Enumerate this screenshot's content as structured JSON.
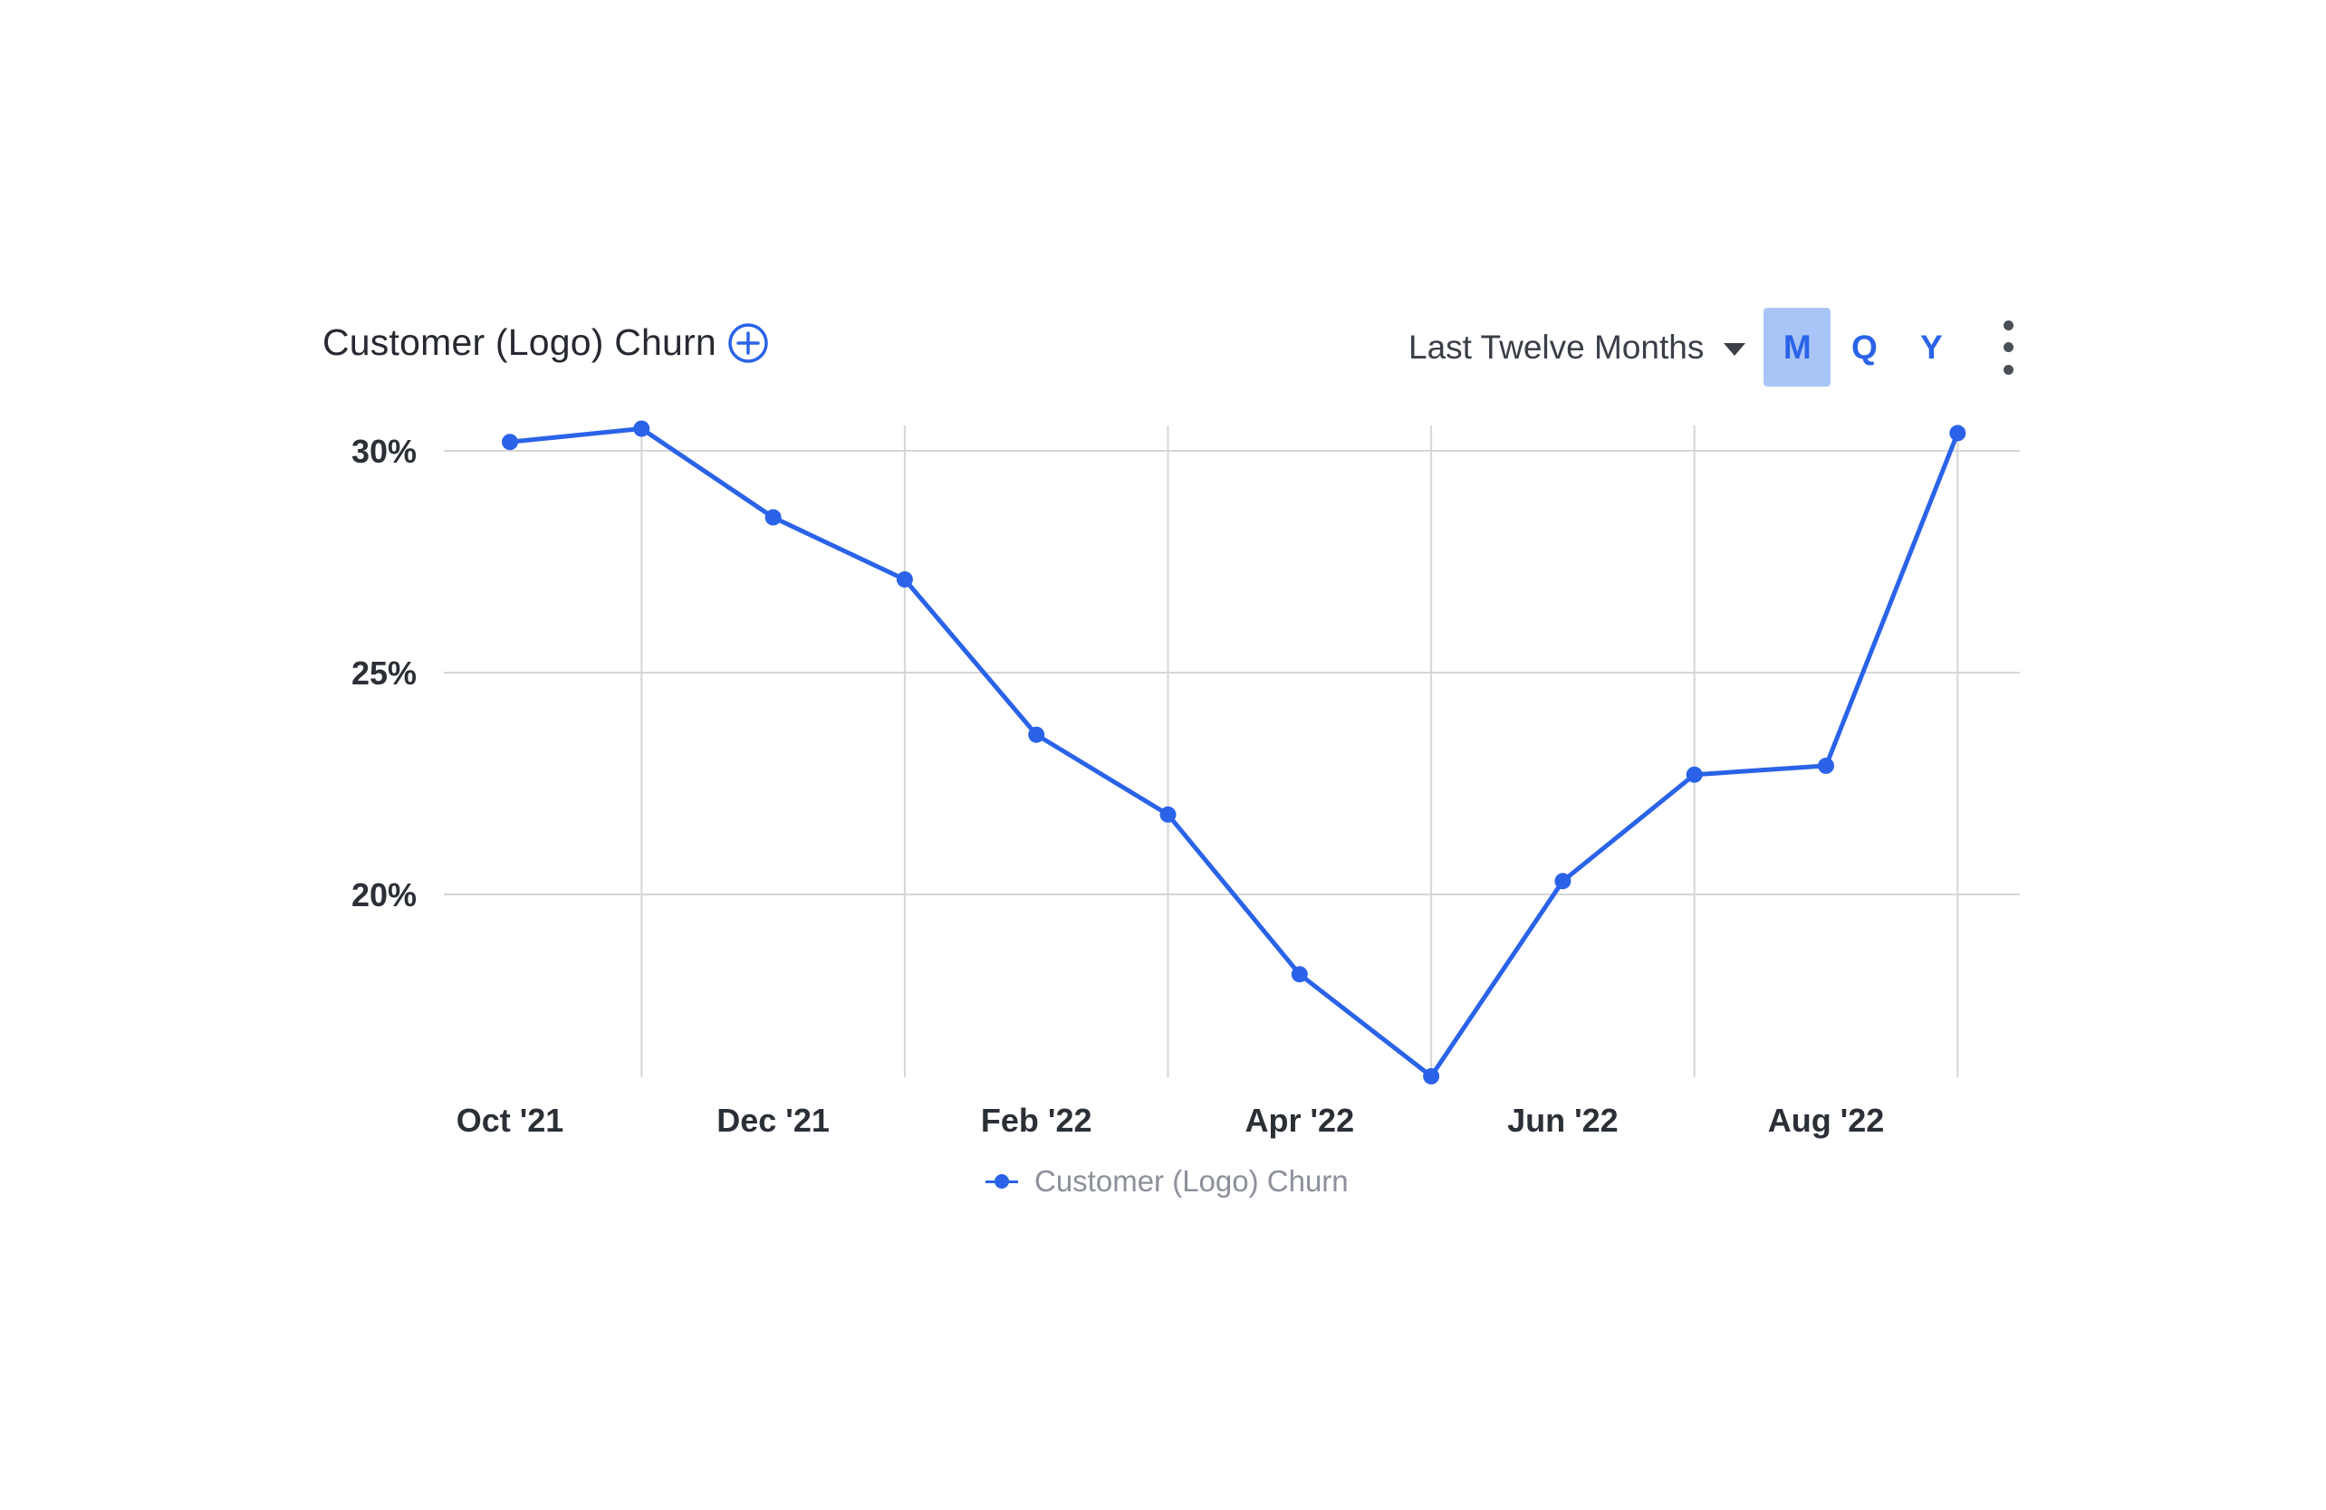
{
  "header": {
    "title": "Customer (Logo) Churn",
    "range_label": "Last Twelve Months",
    "periods": [
      "M",
      "Q",
      "Y"
    ],
    "active_period": "M"
  },
  "colors": {
    "series": "#2a63e8",
    "active_period_bg": "#a9c5f7",
    "grid": "#d6d6d6",
    "text": "#2b2f36",
    "legend_text": "#8b9099"
  },
  "icons": {
    "add": "plus-circle-icon",
    "range_caret": "caret-down-icon",
    "more": "vertical-dots-icon"
  },
  "chart_data": {
    "type": "line",
    "title": "Customer (Logo) Churn",
    "x": [
      "Oct '21",
      "Nov '21",
      "Dec '21",
      "Jan '22",
      "Feb '22",
      "Mar '22",
      "Apr '22",
      "May '22",
      "Jun '22",
      "Jul '22",
      "Aug '22",
      "Sep '22"
    ],
    "x_tick_labels": [
      "Oct '21",
      "Dec '21",
      "Feb '22",
      "Apr '22",
      "Jun '22",
      "Aug '22"
    ],
    "y_tick_labels": [
      "30%",
      "25%",
      "20%"
    ],
    "y_ticks": [
      30,
      25,
      20
    ],
    "ylim": [
      15.8,
      30.6
    ],
    "series": [
      {
        "name": "Customer (Logo) Churn",
        "values": [
          30.2,
          30.5,
          28.5,
          27.1,
          23.6,
          21.8,
          18.2,
          15.9,
          20.3,
          22.7,
          22.9,
          30.4
        ]
      }
    ],
    "grid": true,
    "legend": "bottom-center",
    "xlabel": "",
    "ylabel": ""
  }
}
